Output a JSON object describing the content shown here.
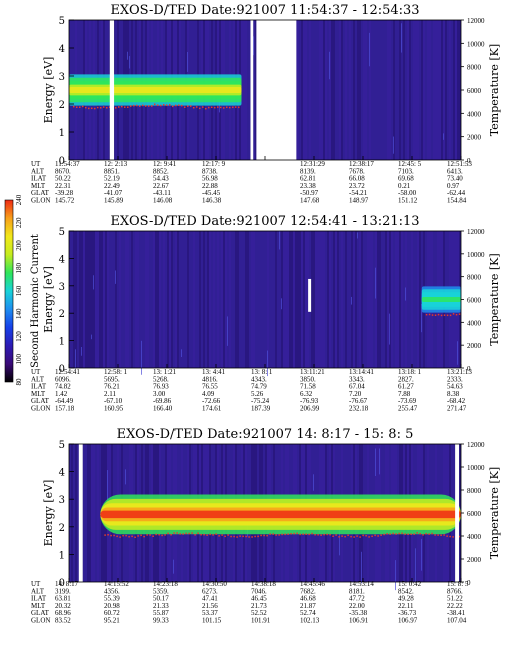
{
  "chart_data": [
    {
      "type": "heatmap",
      "title": "EXOS-D/TED   Date:921007   11:54:37 - 12:54:33",
      "ylabel": "Energy [eV]",
      "y2label": "Temperature [K]",
      "ylim": [
        0,
        5
      ],
      "y2lim": [
        0,
        12000
      ],
      "yticks": [
        "0",
        "1",
        "2",
        "3",
        "4",
        "5"
      ],
      "y2ticks": [
        "0",
        "2000",
        "4000",
        "6000",
        "8000",
        "10000",
        "12000"
      ],
      "band": {
        "energy_center_eV": 2.5,
        "energy_halfwidth_eV": 0.35,
        "start_frac": 0.0,
        "end_frac": 0.44,
        "peak": 0.75
      },
      "gaps_frac": [
        [
          0.104,
          0.115
        ],
        [
          0.463,
          0.47
        ],
        [
          0.478,
          0.58
        ]
      ],
      "row_labels": [
        "UT",
        "ALT",
        "ILAT",
        "MLT",
        "GLAT",
        "GLON"
      ],
      "columns": [
        [
          "11:54:37",
          "8670.",
          "50.22",
          "22.31",
          "-39.28",
          "145.72"
        ],
        [
          "12: 2:13",
          "8851.",
          "52.19",
          "22.49",
          "-41.07",
          "145.89"
        ],
        [
          "12: 9:41",
          "8852.",
          "54.43",
          "22.67",
          "-43.11",
          "146.08"
        ],
        [
          "12:17: 9",
          "8738.",
          "56.98",
          "22.88",
          "-45.45",
          "146.38"
        ],
        [
          "",
          "",
          "",
          "",
          "",
          ""
        ],
        [
          "12:31:29",
          "8139.",
          "62.81",
          "23.38",
          "-50.97",
          "147.68"
        ],
        [
          "12:38:17",
          "7678.",
          "66.08",
          "23.72",
          "-54.21",
          "148.97"
        ],
        [
          "12:45: 5",
          "7103.",
          "69.68",
          "0.21",
          "-58.00",
          "151.12"
        ],
        [
          "12:51:53",
          "6413.",
          "73.40",
          "0.97",
          "-62.44",
          "154.84"
        ]
      ]
    },
    {
      "type": "heatmap",
      "title": "EXOS-D/TED   Date:921007   12:54:41 - 13:21:13",
      "ylabel": "Energy [eV]",
      "y2label": "Temperature [K]",
      "ylim": [
        0,
        5
      ],
      "y2lim": [
        0,
        12000
      ],
      "yticks": [
        "0",
        "1",
        "2",
        "3",
        "4",
        "5"
      ],
      "y2ticks": [
        "0",
        "2000",
        "4000",
        "6000",
        "8000",
        "10000",
        "12000"
      ],
      "band": {
        "energy_center_eV": 2.5,
        "energy_halfwidth_eV": 0.3,
        "start_frac": 0.9,
        "end_frac": 1.0,
        "peak": 0.45
      },
      "gaps_frac": [],
      "spike_frac": 0.61,
      "row_labels": [
        "UT",
        "ALT",
        "ILAT",
        "MLT",
        "GLAT",
        "GLON"
      ],
      "columns": [
        [
          "12:54:41",
          "6096.",
          "74.82",
          "1.42",
          "-64.49",
          "157.18"
        ],
        [
          "12:58: 1",
          "5695.",
          "76.21",
          "2.11",
          "-67.10",
          "160.95"
        ],
        [
          "13: 1:21",
          "5268.",
          "76.93",
          "3.00",
          "-69.86",
          "166.40"
        ],
        [
          "13: 4:41",
          "4816.",
          "76.55",
          "4.09",
          "-72.66",
          "174.61"
        ],
        [
          "13: 8: 1",
          "4343.",
          "74.79",
          "5.26",
          "-75.24",
          "187.39"
        ],
        [
          "13:11:21",
          "3850.",
          "71.58",
          "6.32",
          "-76.93",
          "206.99"
        ],
        [
          "13:14:41",
          "3343.",
          "67.04",
          "7.20",
          "-76.67",
          "232.18"
        ],
        [
          "13:18: 1",
          "2827.",
          "61.27",
          "7.88",
          "-73.69",
          "255.47"
        ],
        [
          "13:21:13",
          "2333.",
          "54.63",
          "8.38",
          "-68.42",
          "271.47"
        ]
      ]
    },
    {
      "type": "heatmap",
      "title": "EXOS-D/TED   Date:921007   14: 8:17 - 15: 8: 5",
      "ylabel": "Energy [eV]",
      "y2label": "Temperature [K]",
      "ylim": [
        0,
        5
      ],
      "y2lim": [
        0,
        12000
      ],
      "yticks": [
        "0",
        "1",
        "2",
        "3",
        "4",
        "5"
      ],
      "y2ticks": [
        "0",
        "2000",
        "4000",
        "6000",
        "8000",
        "10000",
        "12000"
      ],
      "band": {
        "energy_center_eV": 2.45,
        "energy_halfwidth_eV": 0.45,
        "start_frac": 0.08,
        "end_frac": 1.0,
        "peak": 1.0
      },
      "gaps_frac": [
        [
          0.025,
          0.035
        ],
        [
          0.985,
          0.995
        ]
      ],
      "row_labels": [
        "UT",
        "ALT",
        "ILAT",
        "MLT",
        "GLAT",
        "GLON"
      ],
      "columns": [
        [
          "14: 8:17",
          "3199.",
          "63.81",
          "20.32",
          "68.96",
          "83.52"
        ],
        [
          "14:15:52",
          "4356.",
          "55.39",
          "20.98",
          "60.72",
          "95.21"
        ],
        [
          "14:23:18",
          "5359.",
          "50.17",
          "21.33",
          "55.87",
          "99.33"
        ],
        [
          "14:30:50",
          "6273.",
          "47.41",
          "21.56",
          "53.37",
          "101.15"
        ],
        [
          "14:38:18",
          "7046.",
          "46.45",
          "21.73",
          "52.52",
          "101.91"
        ],
        [
          "14:45:46",
          "7682.",
          "46.68",
          "21.87",
          "52.74",
          "102.13"
        ],
        [
          "14:53:14",
          "8181.",
          "47.72",
          "22.00",
          "-35.38",
          "106.91"
        ],
        [
          "15: 0:42",
          "8542.",
          "49.28",
          "22.11",
          "-36.73",
          "106.97"
        ],
        [
          "15: 8: 5",
          "8766.",
          "51.22",
          "22.22",
          "-38.41",
          "107.04"
        ]
      ]
    }
  ],
  "colorbar": {
    "label": "Second Harmonic Current",
    "ticks": [
      "80",
      "100",
      "120",
      "140",
      "160",
      "180",
      "200",
      "220",
      "240"
    ],
    "colors": [
      "#000000",
      "#3a0a78",
      "#2c1bb4",
      "#1640e8",
      "#1e8ef0",
      "#19d3d8",
      "#2fe65a",
      "#c6ec1f",
      "#f1e81b",
      "#f7a01b",
      "#ef2a14"
    ]
  }
}
